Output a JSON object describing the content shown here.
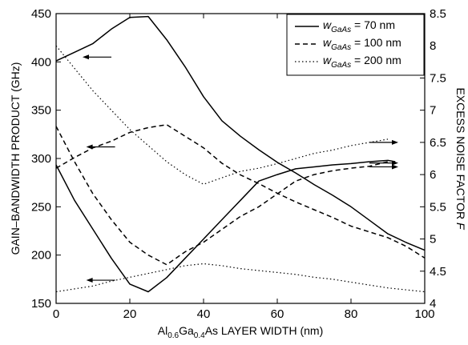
{
  "chart_data": {
    "type": "line",
    "x_axis": {
      "label_parts": {
        "a": "Al",
        "a_sub": "0.6",
        "b": "Ga",
        "b_sub": "0.4",
        "c": "As LAYER WIDTH (nm)"
      },
      "range": [
        0,
        100
      ],
      "ticks": [
        "0",
        "20",
        "40",
        "60",
        "80",
        "100"
      ]
    },
    "y_left": {
      "label": "GAIN–BANDWIDTH PRODUCT (GHz)",
      "range": [
        150,
        450
      ],
      "ticks": [
        "150",
        "200",
        "250",
        "300",
        "350",
        "400",
        "450"
      ]
    },
    "y_right": {
      "label_main": "EXCESS NOISE FACTOR ",
      "label_italic": "F",
      "range": [
        4,
        8.5
      ],
      "ticks": [
        "4",
        "4.5",
        "5",
        "5.5",
        "6",
        "6.5",
        "7",
        "7.5",
        "8",
        "8.5"
      ]
    },
    "grid": false,
    "legend": {
      "position": "top-right",
      "entries": [
        {
          "w": "w",
          "sub": "GaAs",
          "value": " =  70 nm",
          "style": "solid"
        },
        {
          "w": "w",
          "sub": "GaAs",
          "value": " = 100 nm",
          "style": "dashed"
        },
        {
          "w": "w",
          "sub": "GaAs",
          "value": " = 200 nm",
          "style": "dotted"
        }
      ]
    },
    "series": [
      {
        "style": "solid",
        "axis": "left",
        "x": [
          0,
          5,
          10,
          15,
          20,
          25,
          30,
          35,
          40,
          45,
          50,
          55,
          60,
          65,
          70,
          75,
          80,
          85,
          90,
          95,
          100
        ],
        "y": [
          401,
          410,
          419,
          434,
          446,
          447,
          423,
          395,
          364,
          339,
          323,
          309,
          296,
          285,
          273,
          262,
          250,
          236,
          222,
          213,
          205
        ]
      },
      {
        "style": "solid",
        "axis": "right",
        "x": [
          0,
          5,
          10,
          15,
          20,
          25,
          30,
          35,
          40,
          45,
          50,
          55,
          60,
          65,
          70,
          75,
          80,
          85,
          90,
          92
        ],
        "y": [
          6.15,
          5.6,
          5.15,
          4.7,
          4.3,
          4.18,
          4.4,
          4.7,
          5.0,
          5.3,
          5.6,
          5.9,
          6.0,
          6.09,
          6.12,
          6.15,
          6.17,
          6.2,
          6.22,
          6.2
        ]
      },
      {
        "style": "dashed",
        "axis": "left",
        "x": [
          0,
          5,
          10,
          15,
          20,
          25,
          30,
          35,
          40,
          45,
          50,
          55,
          60,
          65,
          70,
          75,
          80,
          85,
          90,
          95,
          100
        ],
        "y": [
          290,
          301,
          311,
          318,
          327,
          332,
          335,
          323,
          311,
          295,
          283,
          274,
          264,
          255,
          247,
          239,
          230,
          224,
          218,
          209,
          197
        ]
      },
      {
        "style": "dashed",
        "axis": "right",
        "x": [
          0,
          5,
          10,
          15,
          20,
          25,
          30,
          35,
          40,
          45,
          50,
          55,
          60,
          65,
          70,
          75,
          80,
          85,
          90
        ],
        "y": [
          6.75,
          6.2,
          5.7,
          5.3,
          4.95,
          4.75,
          4.6,
          4.8,
          4.95,
          5.15,
          5.35,
          5.5,
          5.7,
          5.9,
          6.0,
          6.06,
          6.1,
          6.13,
          6.2
        ]
      },
      {
        "style": "dotted",
        "axis": "right",
        "x": [
          0,
          5,
          10,
          15,
          20,
          25,
          30,
          35,
          40,
          45,
          50,
          55,
          60,
          65,
          70,
          75,
          80,
          85,
          90
        ],
        "y": [
          8.0,
          7.65,
          7.3,
          7.0,
          6.7,
          6.45,
          6.2,
          6.0,
          5.85,
          5.95,
          6.05,
          6.1,
          6.17,
          6.25,
          6.33,
          6.38,
          6.45,
          6.5,
          6.55
        ]
      },
      {
        "style": "dotted",
        "axis": "left",
        "x": [
          0,
          5,
          10,
          15,
          20,
          25,
          30,
          35,
          40,
          45,
          50,
          55,
          60,
          65,
          70,
          75,
          80,
          85,
          90,
          95,
          100
        ],
        "y": [
          162,
          165,
          168,
          173,
          177,
          181,
          185,
          189,
          191,
          189,
          186,
          184,
          182,
          180,
          177,
          175,
          172,
          169,
          166,
          164,
          162
        ]
      }
    ],
    "annotations": [
      {
        "type": "arrow",
        "direction": "left",
        "x": 15,
        "axis": "left",
        "y": 405
      },
      {
        "type": "arrow",
        "direction": "left",
        "x": 16,
        "axis": "left",
        "y": 312
      },
      {
        "type": "arrow",
        "direction": "left",
        "x": 16,
        "axis": "left",
        "y": 174
      },
      {
        "type": "arrow",
        "direction": "right",
        "x": 85,
        "axis": "right",
        "y": 6.5
      },
      {
        "type": "arrow",
        "direction": "right",
        "x": 85,
        "axis": "right",
        "y": 6.18
      },
      {
        "type": "arrow",
        "direction": "right",
        "x": 85,
        "axis": "right",
        "y": 6.12
      }
    ]
  }
}
